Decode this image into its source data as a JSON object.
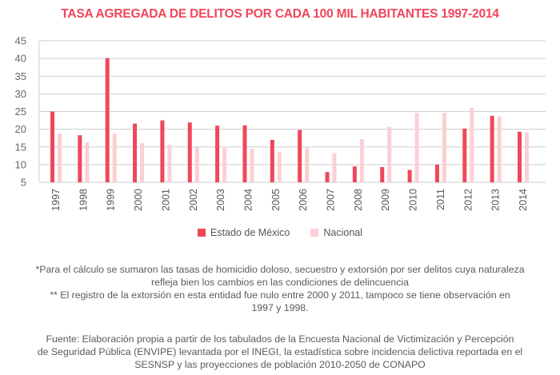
{
  "chart_data": {
    "type": "bar",
    "title": "TASA AGREGADA DE DELITOS POR CADA 100 MIL HABITANTES 1997-2014",
    "xlabel": "",
    "ylabel": "",
    "ylim": [
      5,
      45
    ],
    "yticks": [
      5,
      10,
      15,
      20,
      25,
      30,
      35,
      40,
      45
    ],
    "grid": true,
    "legend_position": "bottom",
    "categories": [
      "1997",
      "1998",
      "1999",
      "2000",
      "2001",
      "2002",
      "2003",
      "2004",
      "2005",
      "2006",
      "2007",
      "2008",
      "2009",
      "2010",
      "2011",
      "2012",
      "2013",
      "2014"
    ],
    "series": [
      {
        "name": "Estado de México",
        "color": "#f0475a",
        "values": [
          25.0,
          18.3,
          40.1,
          21.6,
          22.5,
          21.9,
          21.0,
          21.1,
          17.0,
          19.8,
          7.9,
          9.5,
          9.3,
          8.5,
          10.0,
          20.2,
          23.8,
          19.3
        ]
      },
      {
        "name": "Nacional",
        "color": "#fbd0d4",
        "values": [
          18.8,
          16.3,
          18.8,
          16.1,
          15.6,
          15.0,
          14.7,
          14.5,
          13.6,
          14.8,
          13.2,
          17.2,
          20.7,
          24.6,
          24.6,
          26.0,
          23.6,
          19.1
        ]
      }
    ]
  },
  "notes": {
    "footnote_lines": [
      "*Para el cálculo se sumaron las tasas de homicidio doloso, secuestro y extorsión por ser delitos cuya naturaleza",
      "refleja bien los cambios en las condiciones de delincuencia",
      "** El registro de la extorsión en esta entidad fue nulo entre 2000 y 2011, tampoco se tiene observación en",
      "1997 y 1998."
    ],
    "source_lines": [
      "Fuente: Elaboración propia a partir de los tabulados de la Encuesta Nacional de Victimización y Percepción",
      "de Seguridad Pública (ENVIPE) levantada por el INEGI, la estadística sobre incidencia delictiva reportada en el",
      "SESNSP y las proyecciones de población 2010-2050 de CONAPO"
    ]
  }
}
